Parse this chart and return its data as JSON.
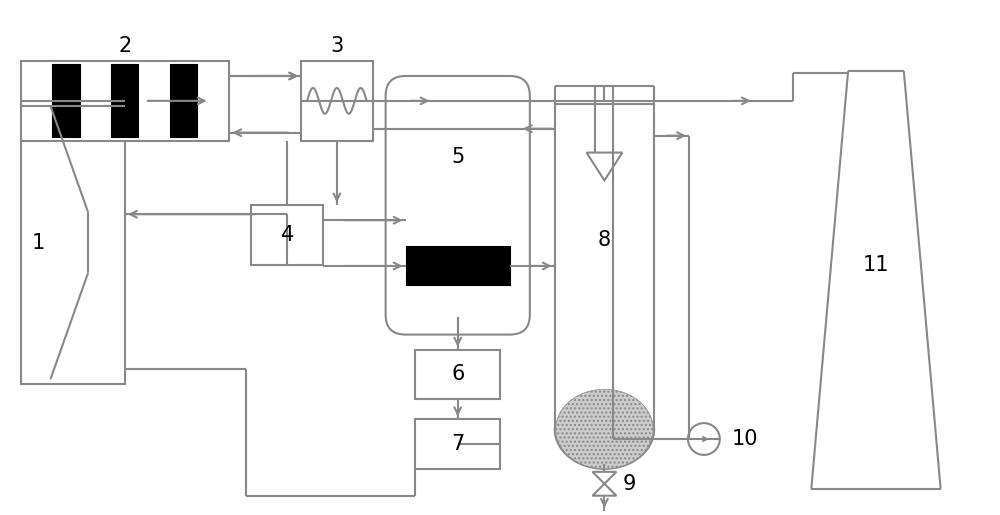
{
  "bg_color": "#ffffff",
  "line_color": "#888888",
  "line_width": 1.5,
  "text_color": "#000000",
  "label_fontsize": 15
}
